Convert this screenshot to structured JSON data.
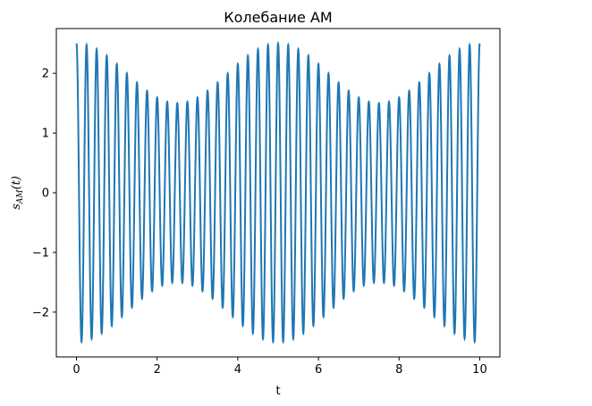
{
  "chart_data": {
    "type": "line",
    "title": "Колебание АМ",
    "xlabel": "t",
    "ylabel": "s_{AM}(t)",
    "ylabel_parts": {
      "base": "s",
      "sub": "AM",
      "suffix": "(t)"
    },
    "xlim": [
      -0.5,
      10.5
    ],
    "ylim": [
      -2.75,
      2.75
    ],
    "xticks": [
      0,
      2,
      4,
      6,
      8,
      10
    ],
    "xtick_labels": [
      "0",
      "2",
      "4",
      "6",
      "8",
      "10"
    ],
    "yticks": [
      -2,
      -1,
      0,
      1,
      2
    ],
    "ytick_labels": [
      "−2",
      "−1",
      "0",
      "1",
      "2"
    ],
    "grid": false,
    "color": "#1f77b4",
    "signal": {
      "carrier_amplitude": 2,
      "modulation_index": 0.25,
      "carrier_frequency": 4,
      "modulation_frequency": 0.2,
      "t_start": 0,
      "t_end": 10,
      "samples": 4000
    }
  }
}
